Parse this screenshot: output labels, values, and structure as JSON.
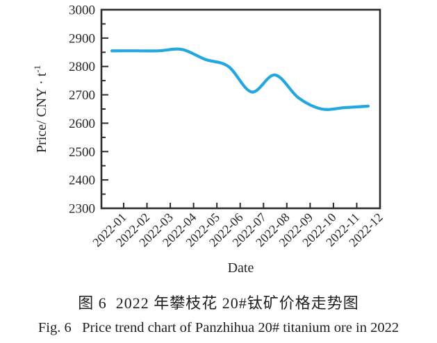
{
  "figure": {
    "caption_zh": "图 6  2022 年攀枝花 20#钛矿价格走势图",
    "caption_en": "Fig. 6   Price trend chart of Panzhihua 20# titanium ore in 2022"
  },
  "chart_data": {
    "type": "line",
    "title": "",
    "xlabel": "Date",
    "ylabel": "Price/ CNY · t⁻¹",
    "ylabel_parts": {
      "base": "Price/ CNY · t",
      "sup": "-1"
    },
    "categories": [
      "2022-01",
      "2022-02",
      "2022-03",
      "2022-04",
      "2022-05",
      "2022-06",
      "2022-07",
      "2022-08",
      "2022-09",
      "2022-10",
      "2022-11",
      "2022-12"
    ],
    "series": [
      {
        "name": "Panzhihua 20# titanium ore price",
        "values": [
          2855,
          2855,
          2855,
          2860,
          2825,
          2800,
          2710,
          2770,
          2690,
          2650,
          2655,
          2660
        ]
      }
    ],
    "ylim": [
      2300,
      3000
    ],
    "ytick_step": 100,
    "yminor_step": 50,
    "grid": false,
    "legend": false,
    "smooth": true,
    "line_color": "#21a7e1",
    "axis_color": "#2b2b2b",
    "label_color": "#262626"
  }
}
